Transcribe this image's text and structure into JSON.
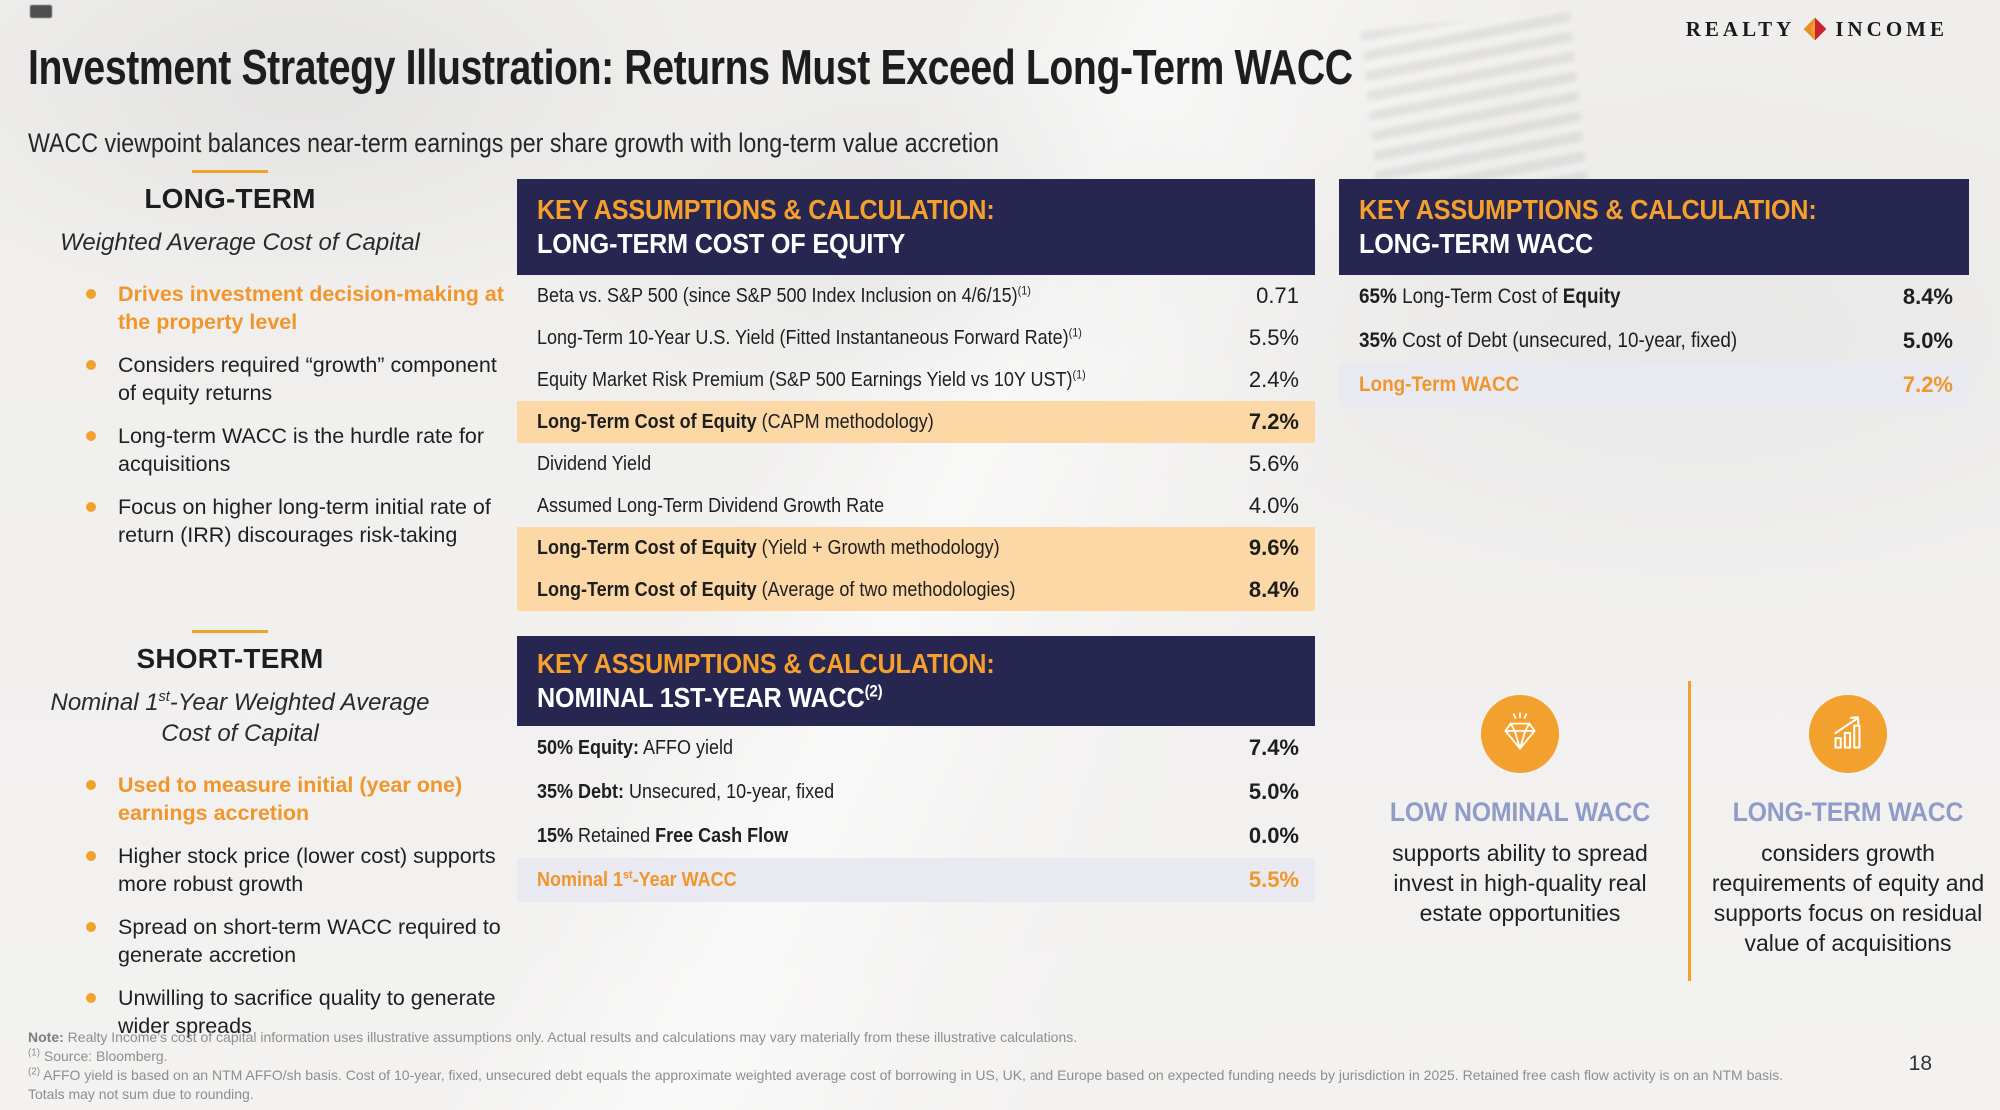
{
  "page": {
    "title": "Investment Strategy Illustration: Returns Must Exceed Long-Term WACC",
    "subtitle": "WACC viewpoint balances near-term earnings per share growth with long-term value accretion",
    "page_number": "18"
  },
  "logo": {
    "left": "REALTY",
    "right": "INCOME"
  },
  "colors": {
    "navy": "#272650",
    "orange_accent": "#f2a12f",
    "orange_text": "#f0962a",
    "peach_highlight": "#fbd8a6",
    "lavender_highlight": "#e9eaf1",
    "periwinkle": "#8f9cc7"
  },
  "long_term": {
    "heading": "LONG-TERM",
    "subheading": "Weighted Average Cost of Capital",
    "bullets": [
      {
        "text": "Drives investment decision-making at the property level",
        "emphasis": true
      },
      {
        "text": "Considers required “growth” component of equity returns",
        "emphasis": false
      },
      {
        "text": "Long-term WACC is the hurdle rate for acquisitions",
        "emphasis": false
      },
      {
        "text": "Focus on higher long-term initial rate of return (IRR) discourages risk-taking",
        "emphasis": false
      }
    ]
  },
  "short_term": {
    "heading": "SHORT-TERM",
    "subheading_parts": [
      {
        "t": "Nominal 1"
      },
      {
        "t": "st",
        "sup": true
      },
      {
        "t": "-Year Weighted Average Cost of Capital"
      }
    ],
    "bullets": [
      {
        "text": "Used to measure initial (year one) earnings accretion",
        "emphasis": true
      },
      {
        "text": "Higher stock price (lower cost) supports more robust growth",
        "emphasis": false
      },
      {
        "text": "Spread on short-term WACC required to generate accretion",
        "emphasis": false
      },
      {
        "text": "Unwilling to sacrifice quality to generate wider spreads",
        "emphasis": false
      }
    ]
  },
  "coe_table": {
    "header_line1": "KEY ASSUMPTIONS & CALCULATION:",
    "header_line2": "LONG-TERM COST OF EQUITY",
    "rows": [
      {
        "label": [
          {
            "t": "Beta vs. S&P 500 (since S&P 500 Index Inclusion on 4/6/15)"
          },
          {
            "t": "(1)",
            "sup": true
          }
        ],
        "value": "0.71"
      },
      {
        "label": [
          {
            "t": "Long-Term 10-Year U.S. Yield (Fitted Instantaneous Forward Rate)"
          },
          {
            "t": "(1)",
            "sup": true
          }
        ],
        "value": "5.5%"
      },
      {
        "label": [
          {
            "t": "Equity Market Risk Premium (S&P 500 Earnings Yield vs 10Y UST)"
          },
          {
            "t": "(1)",
            "sup": true
          }
        ],
        "value": "2.4%"
      },
      {
        "label": [
          {
            "t": "Long-Term Cost of Equity",
            "b": true
          },
          {
            "t": " (CAPM methodology)"
          }
        ],
        "value": "7.2%",
        "hl": "peach",
        "vb": true
      },
      {
        "label": [
          {
            "t": "Dividend Yield"
          }
        ],
        "value": "5.6%"
      },
      {
        "label": [
          {
            "t": "Assumed Long-Term Dividend Growth Rate"
          }
        ],
        "value": "4.0%"
      },
      {
        "label": [
          {
            "t": "Long-Term Cost of Equity",
            "b": true
          },
          {
            "t": " (Yield + Growth methodology)"
          }
        ],
        "value": "9.6%",
        "hl": "peach",
        "vb": true
      },
      {
        "label": [
          {
            "t": "Long-Term Cost of Equity",
            "b": true
          },
          {
            "t": " (Average of two methodologies)"
          }
        ],
        "value": "8.4%",
        "hl": "peach",
        "vb": true
      }
    ]
  },
  "wacc_table": {
    "header_line1": "KEY ASSUMPTIONS & CALCULATION:",
    "header_line2": "LONG-TERM WACC",
    "rows": [
      {
        "label": [
          {
            "t": "65%",
            "b": true
          },
          {
            "t": " Long-Term Cost of "
          },
          {
            "t": "Equity",
            "b": true
          }
        ],
        "value": "8.4%",
        "vb": true
      },
      {
        "label": [
          {
            "t": "35%",
            "b": true
          },
          {
            "t": " Cost of Debt (unsecured, 10-year, fixed)"
          }
        ],
        "value": "5.0%",
        "vb": true
      },
      {
        "label": [
          {
            "t": "Long-Term WACC",
            "b": true,
            "o": true
          }
        ],
        "value": "7.2%",
        "hl": "lav",
        "vb": true,
        "vo": true
      }
    ]
  },
  "nominal_table": {
    "header_line1": "KEY ASSUMPTIONS & CALCULATION:",
    "header_line2_parts": [
      {
        "t": "NOMINAL 1ST-YEAR WACC"
      },
      {
        "t": "(2)",
        "sup": true
      }
    ],
    "rows": [
      {
        "label": [
          {
            "t": "50% Equity:",
            "b": true
          },
          {
            "t": " AFFO yield"
          }
        ],
        "value": "7.4%",
        "vb": true
      },
      {
        "label": [
          {
            "t": "35% Debt:",
            "b": true
          },
          {
            "t": " Unsecured, 10-year, fixed"
          }
        ],
        "value": "5.0%",
        "vb": true
      },
      {
        "label": [
          {
            "t": "15%",
            "b": true
          },
          {
            "t": " Retained "
          },
          {
            "t": "Free Cash Flow",
            "b": true
          }
        ],
        "value": "0.0%",
        "vb": true
      },
      {
        "label": [
          {
            "t": "Nominal 1",
            "b": true,
            "o": true
          },
          {
            "t": "st",
            "sup": true,
            "b": true,
            "o": true
          },
          {
            "t": "-Year WACC",
            "b": true,
            "o": true
          }
        ],
        "value": "5.5%",
        "hl": "lav",
        "vb": true,
        "vo": true
      }
    ]
  },
  "info_cards": [
    {
      "icon": "gem-icon",
      "title": "LOW NOMINAL WACC",
      "body": "supports ability to spread invest in high-quality real estate opportunities"
    },
    {
      "icon": "growth-chart-icon",
      "title": "LONG-TERM WACC",
      "body": "considers growth requirements of equity and supports focus on residual value of acquisitions"
    }
  ],
  "footnotes": {
    "note_label": "Note:",
    "note": "Realty Income’s cost of capital information uses illustrative assumptions only. Actual results and calculations may vary materially from these illustrative calculations.",
    "fn1_sup": "(1)",
    "fn1": "Source: Bloomberg.",
    "fn2_sup": "(2)",
    "fn2": "AFFO yield is based on an NTM AFFO/sh basis. Cost of 10-year, fixed, unsecured debt equals the approximate weighted average cost of borrowing in US, UK, and Europe based on expected funding needs by jurisdiction in 2025. Retained free cash flow activity is on an NTM basis.",
    "fn3": "Totals may not sum due to rounding."
  }
}
